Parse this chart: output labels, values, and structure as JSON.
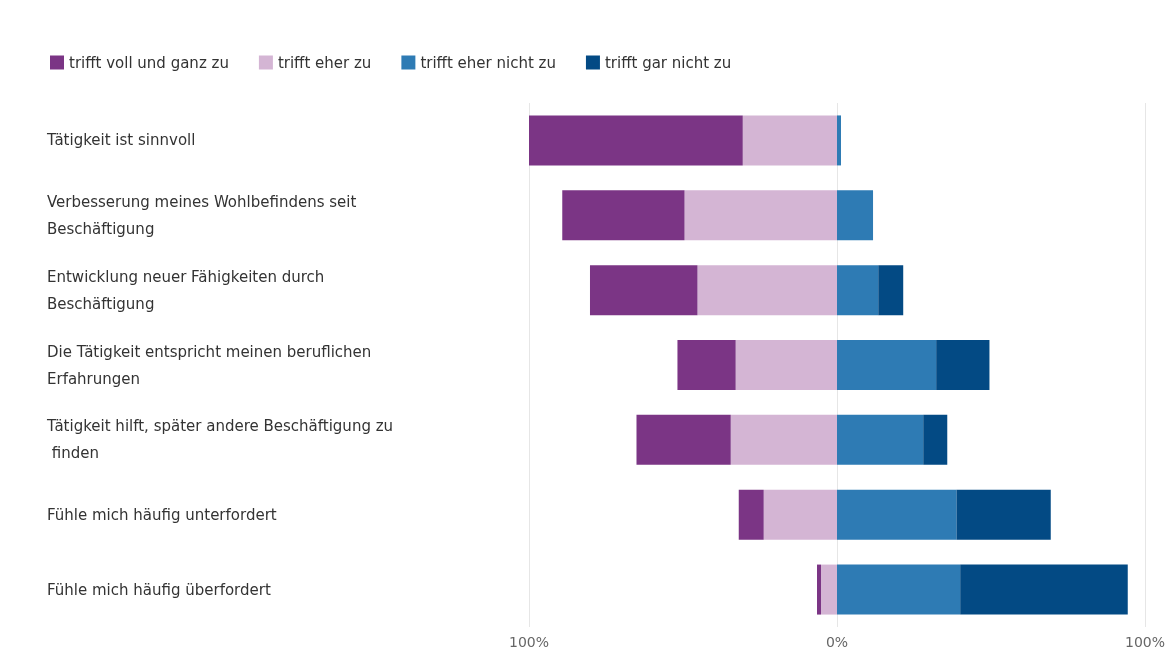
{
  "chart_data": {
    "type": "bar",
    "orientation": "horizontal",
    "stacked": true,
    "grid": "x",
    "legend": "top left",
    "categories": [
      "Tätigkeit ist sinnvoll",
      "Verbesserung meines Wohlbefindens seit Beschäftigung",
      "Entwicklung neuer Fähigkeiten durch Beschäftigung",
      "Die Tätigkeit entspricht meinen beruflichen Erfahrungen",
      "Tätigkeit hilft, später andere Beschäftigung zu finden",
      "Fühle mich häufig unterfordert",
      "Fühle mich häufig überfordert"
    ],
    "series": [
      {
        "name": "trifft voll und ganz zu",
        "color": "#7b3585",
        "values": [
          -69.4,
          -39.7,
          -34.9,
          -18.9,
          -30.6,
          -8.1,
          -1.3
        ]
      },
      {
        "name": "trifft eher zu",
        "color": "#d4b5d4",
        "values": [
          -30.6,
          -49.5,
          -45.3,
          -32.9,
          -34.5,
          -23.8,
          -5.2
        ]
      },
      {
        "name": "trifft eher nicht zu",
        "color": "#2e7bb4",
        "values": [
          1.3,
          11.7,
          13.4,
          32.2,
          28,
          38.8,
          40
        ]
      },
      {
        "name": "trifft gar nicht zu",
        "color": "#034a84",
        "values": [
          null,
          null,
          8.1,
          17.3,
          7.8,
          30.6,
          54.4
        ]
      }
    ],
    "xlim": [
      -100,
      100
    ],
    "xticks": [
      {
        "value": -100,
        "label": "100%"
      },
      {
        "value": 0,
        "label": "0%"
      },
      {
        "value": 100,
        "label": "100%"
      }
    ]
  }
}
